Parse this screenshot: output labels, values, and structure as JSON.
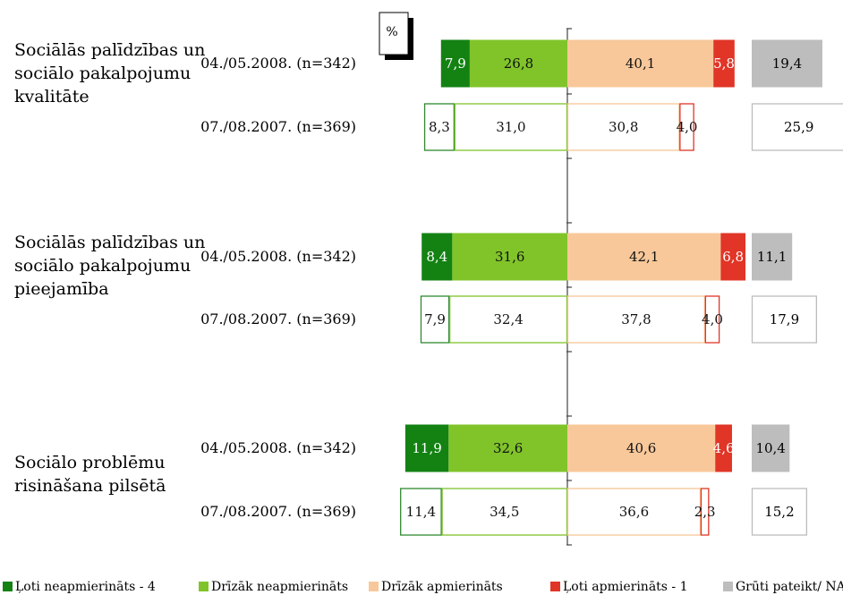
{
  "chart_data": {
    "type": "bar",
    "unit": "%",
    "x_range": [
      -50,
      50
    ],
    "grid": false,
    "legend_position": "bottom",
    "legend": [
      {
        "label": "Ļoti neapmierināts - 4",
        "color": "#138213"
      },
      {
        "label": "Drīzāk neapmierināts",
        "color": "#80c42a"
      },
      {
        "label": "Drīzāk apmierināts",
        "color": "#f8c89a"
      },
      {
        "label": "Ļoti apmierināts - 1",
        "color": "#e03527"
      },
      {
        "label": "Grūti pateikt/ NA",
        "color": "#bdbdbd"
      }
    ],
    "groups": [
      {
        "label_lines": [
          "Sociālās palīdzības un",
          "sociālo pakalpojumu",
          "kvalitāte"
        ],
        "rows": [
          {
            "label": "04./05.2008. (n=342)",
            "filled": true,
            "values": [
              7.9,
              26.8,
              40.1,
              5.8,
              19.4
            ],
            "labels": [
              "7,9",
              "26,8",
              "40,1",
              "5,8",
              "19,4"
            ]
          },
          {
            "label": "07./08.2007. (n=369)",
            "filled": false,
            "values": [
              8.3,
              31.0,
              30.8,
              4.0,
              25.9
            ],
            "labels": [
              "8,3",
              "31,0",
              "30,8",
              "4,0",
              "25,9"
            ]
          }
        ]
      },
      {
        "label_lines": [
          "Sociālās palīdzības un",
          "sociālo pakalpojumu",
          "pieejamība"
        ],
        "rows": [
          {
            "label": "04./05.2008. (n=342)",
            "filled": true,
            "values": [
              8.4,
              31.6,
              42.1,
              6.8,
              11.1
            ],
            "labels": [
              "8,4",
              "31,6",
              "42,1",
              "6,8",
              "11,1"
            ]
          },
          {
            "label": "07./08.2007. (n=369)",
            "filled": false,
            "values": [
              7.9,
              32.4,
              37.8,
              4.0,
              17.9
            ],
            "labels": [
              "7,9",
              "32,4",
              "37,8",
              "4,0",
              "17,9"
            ]
          }
        ]
      },
      {
        "label_lines": [
          "Sociālo problēmu",
          "risināšana  pilsētā"
        ],
        "rows": [
          {
            "label": "04./05.2008. (n=342)",
            "filled": true,
            "values": [
              11.9,
              32.6,
              40.6,
              4.6,
              10.4
            ],
            "labels": [
              "11,9",
              "32,6",
              "40,6",
              "4,6",
              "10,4"
            ]
          },
          {
            "label": "07./08.2007. (n=369)",
            "filled": false,
            "values": [
              11.4,
              34.5,
              36.6,
              2.3,
              15.2
            ],
            "labels": [
              "11,4",
              "34,5",
              "36,6",
              "2,3",
              "15,2"
            ]
          }
        ]
      }
    ]
  }
}
